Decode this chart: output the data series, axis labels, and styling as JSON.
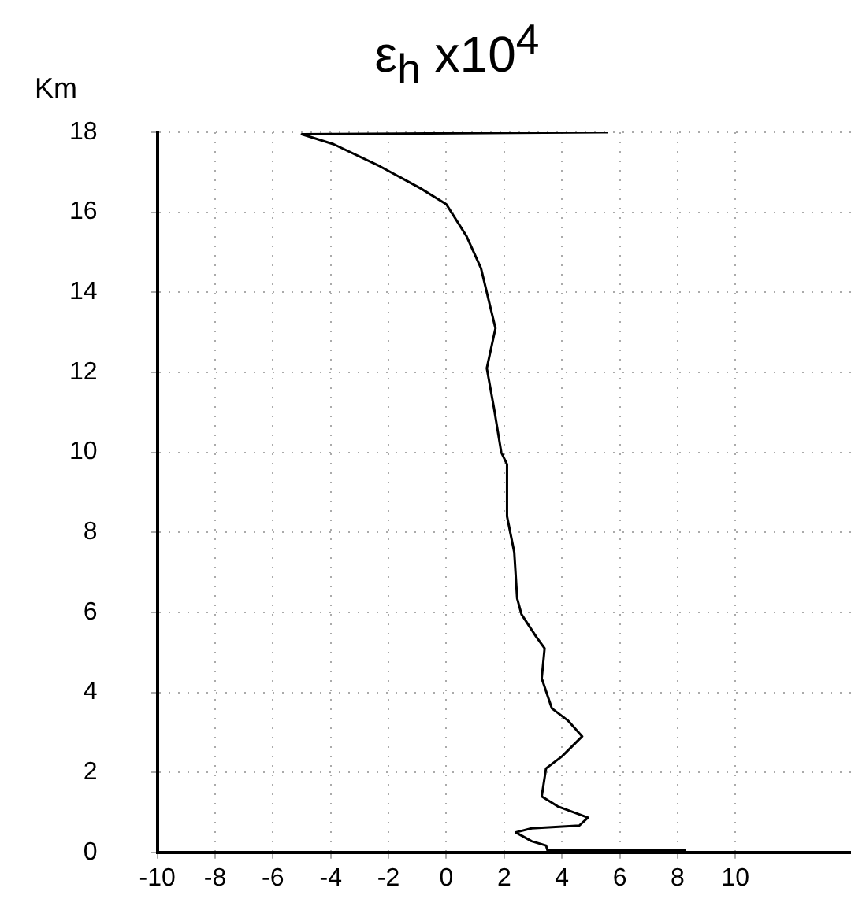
{
  "chart_data": {
    "type": "line",
    "title": "ε$_{h}$  x10$^{4}$",
    "ylabel": "Km",
    "series": [
      {
        "color": "#000000",
        "x": [
          5.6,
          -5.0,
          -3.9,
          -2.3,
          -0.9,
          0,
          0.7,
          1.2,
          1.5,
          1.7,
          1.4,
          1.65,
          1.9,
          2.1,
          2.1,
          2.35,
          2.45,
          2.6,
          3.1,
          3.4,
          3.3,
          3.65,
          4.2,
          4.7,
          4.0,
          3.45,
          3.3,
          3.85,
          4.9,
          4.6,
          2.95,
          2.4,
          2.95,
          3.45,
          3.5,
          8.3
        ],
        "values": [
          18,
          17.95,
          17.7,
          17.15,
          16.6,
          16.2,
          15.4,
          14.6,
          13.7,
          13.1,
          12.1,
          11.1,
          10.0,
          9.7,
          8.4,
          7.5,
          6.35,
          5.95,
          5.4,
          5.1,
          4.35,
          3.6,
          3.3,
          2.9,
          2.4,
          2.1,
          1.4,
          1.15,
          0.87,
          0.67,
          0.6,
          0.5,
          0.28,
          0.17,
          0.05,
          0.05
        ]
      }
    ],
    "xlim": [
      -10,
      14
    ],
    "xticks": [
      -10,
      -8,
      -6,
      -4,
      -2,
      0,
      2,
      4,
      6,
      8,
      10
    ],
    "ylim": [
      0,
      18
    ],
    "yticks": [
      0,
      2,
      4,
      6,
      8,
      10,
      12,
      14,
      16,
      18
    ],
    "grid": true,
    "legend": false,
    "marker": "none",
    "line_style": "solid"
  }
}
